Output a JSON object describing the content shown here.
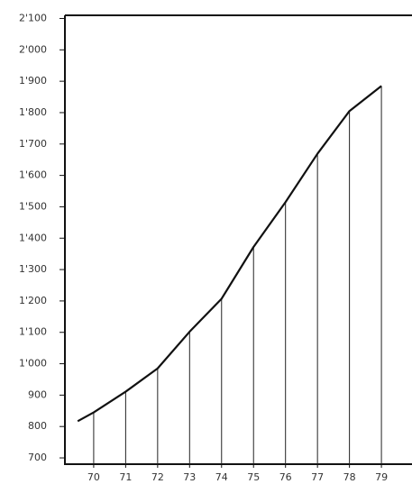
{
  "chart_data": {
    "type": "line",
    "x": [
      69.5,
      70,
      71,
      72,
      73,
      74,
      75,
      76,
      77,
      78,
      79
    ],
    "series": [
      {
        "color": "#111111",
        "values": [
          817,
          845,
          911,
          985,
          1102,
          1207,
          1372,
          1515,
          1669,
          1805,
          1885
        ]
      }
    ],
    "xlim": [
      69.1,
      79.9
    ],
    "xticks": [
      70,
      71,
      72,
      73,
      74,
      75,
      76,
      77,
      78,
      79
    ],
    "ylim": [
      680,
      2110
    ],
    "yticks": [
      700,
      800,
      900,
      {
        "value": 1000,
        "label": "1'000"
      },
      {
        "value": 1100,
        "label": "1'100"
      },
      {
        "value": 1200,
        "label": "1'200"
      },
      {
        "value": 1300,
        "label": "1'300"
      },
      {
        "value": 1400,
        "label": "1'400"
      },
      {
        "value": 1500,
        "label": "1'500"
      },
      {
        "value": 1600,
        "label": "1'600"
      },
      {
        "value": 1700,
        "label": "1'700"
      },
      {
        "value": 1800,
        "label": "1'800"
      },
      {
        "value": 1900,
        "label": "1'900"
      },
      {
        "value": 2000,
        "label": "2'000"
      },
      {
        "value": 2100,
        "label": "2'100"
      }
    ],
    "drop_lines": true,
    "grid": false
  }
}
